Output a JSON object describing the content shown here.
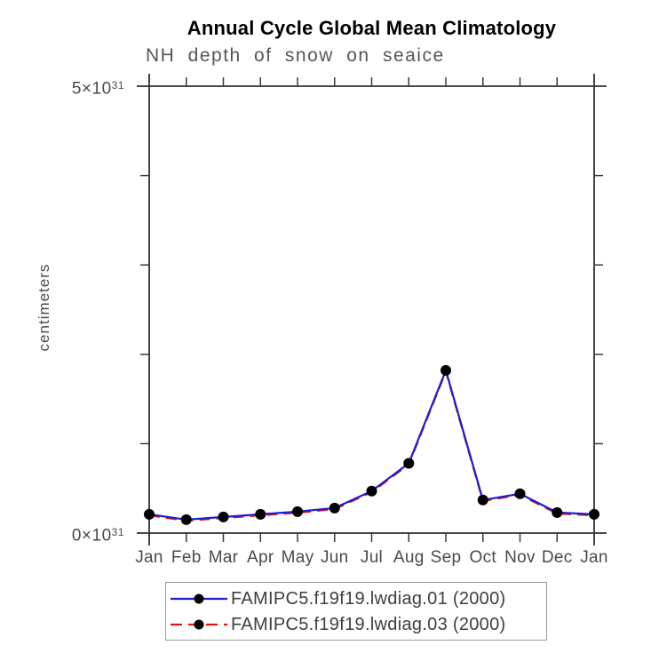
{
  "chart": {
    "title": "Annual Cycle Global Mean Climatology",
    "subtitle": "NH depth of snow on seaice",
    "ylabel": "centimeters",
    "y_axis": {
      "max_label": "5×10^31",
      "min_label": "0×10^31",
      "min": 0,
      "max": 5,
      "tick_interval": 1
    }
  },
  "chart_data": {
    "type": "line",
    "title": "Annual Cycle Global Mean Climatology",
    "subtitle": "NH depth of snow on seaice",
    "xlabel": "",
    "ylabel": "centimeters",
    "y_unit_scale": "10^31",
    "ylim": [
      0,
      5
    ],
    "grid": false,
    "legend_position": "bottom",
    "categories": [
      "Jan",
      "Feb",
      "Mar",
      "Apr",
      "May",
      "Jun",
      "Jul",
      "Aug",
      "Sep",
      "Oct",
      "Nov",
      "Dec",
      "Jan"
    ],
    "series": [
      {
        "name": "FAMIPC5.f19f19.lwdiag.01 (2000)",
        "style": "solid",
        "color": "#1c1ccf",
        "marker": "circle",
        "marker_color": "#000000",
        "values": [
          0.21,
          0.15,
          0.18,
          0.21,
          0.24,
          0.28,
          0.47,
          0.78,
          1.82,
          0.37,
          0.44,
          0.23,
          0.21
        ]
      },
      {
        "name": "FAMIPC5.f19f19.lwdiag.03 (2000)",
        "style": "dashed",
        "color": "#e31414",
        "marker": "circle",
        "marker_color": "#000000",
        "values": [
          0.21,
          0.15,
          0.18,
          0.21,
          0.24,
          0.28,
          0.47,
          0.78,
          1.82,
          0.37,
          0.44,
          0.23,
          0.21
        ]
      }
    ]
  },
  "colors": {
    "axis": "#2e2e2e",
    "tick": "#3a3a3a",
    "title_text": "#000000",
    "subtitle_text": "#565656",
    "tick_label_text": "#4a4a4a",
    "legend_text": "#3e3e3e",
    "legend_border": "#9a9a9a",
    "background": "#ffffff"
  }
}
